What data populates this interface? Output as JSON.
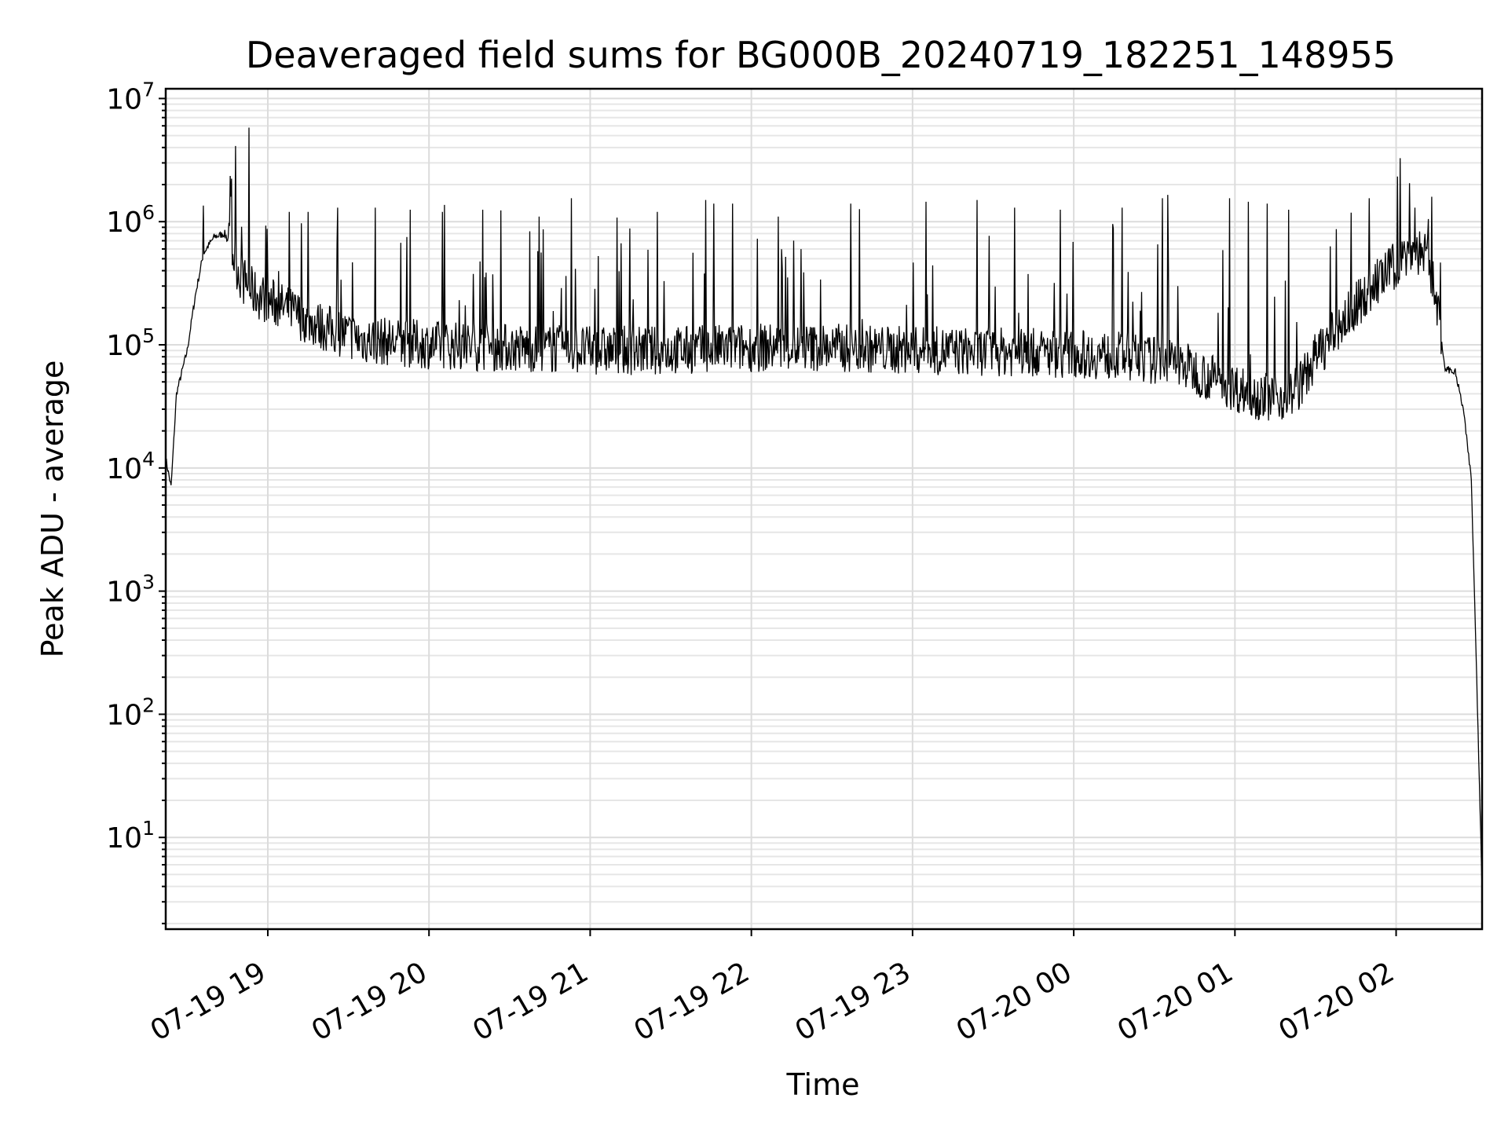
{
  "chart_data": {
    "type": "line",
    "title": "Deaveraged field sums for BG000B_20240719_182251_148955",
    "xlabel": "Time",
    "ylabel": "Peak ADU - average",
    "yscale": "log",
    "ylim": [
      1.8,
      12000000
    ],
    "xlim": [
      "2024-07-19T18:22",
      "2024-07-20T02:32"
    ],
    "grid": true,
    "x_ticks": [
      {
        "label": "07-19 19",
        "time": "2024-07-19T19:00"
      },
      {
        "label": "07-19 20",
        "time": "2024-07-19T20:00"
      },
      {
        "label": "07-19 21",
        "time": "2024-07-19T21:00"
      },
      {
        "label": "07-19 22",
        "time": "2024-07-19T22:00"
      },
      {
        "label": "07-19 23",
        "time": "2024-07-19T23:00"
      },
      {
        "label": "07-20 00",
        "time": "2024-07-20T00:00"
      },
      {
        "label": "07-20 01",
        "time": "2024-07-20T01:00"
      },
      {
        "label": "07-20 02",
        "time": "2024-07-20T02:00"
      }
    ],
    "y_ticks": [
      {
        "base": "10",
        "exp": "1",
        "value": 10
      },
      {
        "base": "10",
        "exp": "2",
        "value": 100
      },
      {
        "base": "10",
        "exp": "3",
        "value": 1000
      },
      {
        "base": "10",
        "exp": "4",
        "value": 10000
      },
      {
        "base": "10",
        "exp": "5",
        "value": 100000
      },
      {
        "base": "10",
        "exp": "6",
        "value": 1000000
      },
      {
        "base": "10",
        "exp": "7",
        "value": 10000000
      }
    ],
    "series": [
      {
        "color": "#000000",
        "baseline": [
          [
            "2024-07-19T18:22",
            12000
          ],
          [
            "2024-07-19T18:24",
            7000
          ],
          [
            "2024-07-19T18:26",
            40000
          ],
          [
            "2024-07-19T18:28",
            60000
          ],
          [
            "2024-07-19T18:30",
            90000
          ],
          [
            "2024-07-19T18:33",
            250000
          ],
          [
            "2024-07-19T18:36",
            550000
          ],
          [
            "2024-07-19T18:40",
            750000
          ],
          [
            "2024-07-19T18:44",
            800000
          ],
          [
            "2024-07-19T18:47",
            550000
          ],
          [
            "2024-07-19T18:50",
            350000
          ],
          [
            "2024-07-19T18:55",
            260000
          ],
          [
            "2024-07-19T19:00",
            230000
          ],
          [
            "2024-07-19T19:10",
            180000
          ],
          [
            "2024-07-19T19:20",
            140000
          ],
          [
            "2024-07-19T19:35",
            110000
          ],
          [
            "2024-07-19T20:00",
            100000
          ],
          [
            "2024-07-19T20:30",
            95000
          ],
          [
            "2024-07-19T21:00",
            90000
          ],
          [
            "2024-07-19T21:30",
            90000
          ],
          [
            "2024-07-19T22:00",
            95000
          ],
          [
            "2024-07-19T22:30",
            95000
          ],
          [
            "2024-07-19T23:00",
            90000
          ],
          [
            "2024-07-19T23:30",
            88000
          ],
          [
            "2024-07-20T00:00",
            85000
          ],
          [
            "2024-07-20T00:20",
            80000
          ],
          [
            "2024-07-20T00:40",
            70000
          ],
          [
            "2024-07-20T00:50",
            55000
          ],
          [
            "2024-07-20T01:00",
            45000
          ],
          [
            "2024-07-20T01:10",
            38000
          ],
          [
            "2024-07-20T01:20",
            38000
          ],
          [
            "2024-07-20T01:25",
            50000
          ],
          [
            "2024-07-20T01:30",
            80000
          ],
          [
            "2024-07-20T01:40",
            150000
          ],
          [
            "2024-07-20T01:50",
            280000
          ],
          [
            "2024-07-20T02:00",
            450000
          ],
          [
            "2024-07-20T02:06",
            600000
          ],
          [
            "2024-07-20T02:11",
            550000
          ],
          [
            "2024-07-20T02:15",
            250000
          ],
          [
            "2024-07-20T02:18",
            65000
          ],
          [
            "2024-07-20T02:22",
            60000
          ],
          [
            "2024-07-20T02:25",
            30000
          ],
          [
            "2024-07-20T02:28",
            8000
          ],
          [
            "2024-07-20T02:30",
            200
          ],
          [
            "2024-07-20T02:32",
            4
          ]
        ],
        "spikes": [
          [
            "2024-07-19T18:36",
            1350000
          ],
          [
            "2024-07-19T18:46",
            2350000
          ],
          [
            "2024-07-19T18:53",
            5800000
          ],
          [
            "2024-07-19T19:08",
            1200000
          ],
          [
            "2024-07-19T19:15",
            1200000
          ],
          [
            "2024-07-19T19:26",
            1300000
          ],
          [
            "2024-07-19T19:40",
            1300000
          ],
          [
            "2024-07-19T19:53",
            1250000
          ],
          [
            "2024-07-19T20:05",
            1200000
          ],
          [
            "2024-07-19T20:20",
            1250000
          ],
          [
            "2024-07-19T20:41",
            1100000
          ],
          [
            "2024-07-19T20:53",
            1550000
          ],
          [
            "2024-07-19T21:25",
            1200000
          ],
          [
            "2024-07-19T21:43",
            1500000
          ],
          [
            "2024-07-19T21:46",
            1400000
          ],
          [
            "2024-07-19T21:53",
            1400000
          ],
          [
            "2024-07-19T22:10",
            1100000
          ],
          [
            "2024-07-19T22:37",
            1400000
          ],
          [
            "2024-07-19T23:05",
            1450000
          ],
          [
            "2024-07-19T23:24",
            1500000
          ],
          [
            "2024-07-19T23:38",
            1300000
          ],
          [
            "2024-07-19T23:55",
            1250000
          ],
          [
            "2024-07-20T00:18",
            1300000
          ],
          [
            "2024-07-20T00:33",
            1550000
          ],
          [
            "2024-07-20T00:35",
            1650000
          ],
          [
            "2024-07-20T00:58",
            1550000
          ],
          [
            "2024-07-20T01:05",
            1450000
          ],
          [
            "2024-07-20T01:12",
            1400000
          ],
          [
            "2024-07-20T01:20",
            1250000
          ],
          [
            "2024-07-20T01:50",
            1550000
          ],
          [
            "2024-07-20T02:07",
            1300000
          ],
          [
            "2024-07-20T02:12",
            1050000
          ]
        ]
      }
    ]
  }
}
